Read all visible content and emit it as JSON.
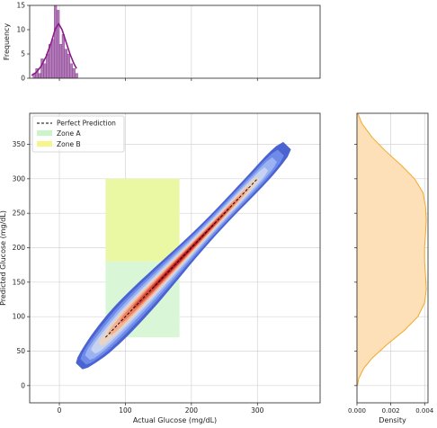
{
  "chart_data": [
    {
      "panel": "top-marginal",
      "type": "histogram",
      "ylabel": "Frequency",
      "xlim": [
        -45,
        395
      ],
      "ylim": [
        0,
        15
      ],
      "xticks": [
        0,
        100,
        200,
        300
      ],
      "yticks": [
        0,
        5,
        10,
        15
      ],
      "yticklabels": [
        "0",
        "5",
        "10",
        "15"
      ],
      "bins": [
        {
          "x0": -40,
          "x1": -36,
          "count": 1
        },
        {
          "x0": -36,
          "x1": -32,
          "count": 2
        },
        {
          "x0": -32,
          "x1": -28,
          "count": 1
        },
        {
          "x0": -28,
          "x1": -24,
          "count": 4
        },
        {
          "x0": -24,
          "x1": -20,
          "count": 3
        },
        {
          "x0": -20,
          "x1": -16,
          "count": 5
        },
        {
          "x0": -16,
          "x1": -12,
          "count": 7
        },
        {
          "x0": -12,
          "x1": -8,
          "count": 8
        },
        {
          "x0": -8,
          "x1": -4,
          "count": 15
        },
        {
          "x0": -4,
          "x1": 0,
          "count": 14
        },
        {
          "x0": 0,
          "x1": 4,
          "count": 7
        },
        {
          "x0": 4,
          "x1": 8,
          "count": 9
        },
        {
          "x0": 8,
          "x1": 12,
          "count": 6
        },
        {
          "x0": 12,
          "x1": 16,
          "count": 5
        },
        {
          "x0": 16,
          "x1": 20,
          "count": 3
        },
        {
          "x0": 20,
          "x1": 24,
          "count": 2
        },
        {
          "x0": 24,
          "x1": 28,
          "count": 1
        }
      ],
      "kde": [
        {
          "x": -42,
          "y": 0.6
        },
        {
          "x": -35,
          "y": 1.2
        },
        {
          "x": -28,
          "y": 2.4
        },
        {
          "x": -20,
          "y": 4.5
        },
        {
          "x": -12,
          "y": 7.5
        },
        {
          "x": -6,
          "y": 10.2
        },
        {
          "x": -1,
          "y": 11.2
        },
        {
          "x": 4,
          "y": 10.0
        },
        {
          "x": 10,
          "y": 7.5
        },
        {
          "x": 16,
          "y": 5.0
        },
        {
          "x": 22,
          "y": 3.0
        },
        {
          "x": 26,
          "y": 2.0
        }
      ],
      "color": "#8b1a8b"
    },
    {
      "panel": "main",
      "type": "density-contour",
      "xlabel": "Actual Glucose (mg/dL)",
      "ylabel": "Predicted Glucose (mg/dL)",
      "xlim": [
        -45,
        395
      ],
      "ylim": [
        -25,
        395
      ],
      "xticks": [
        0,
        100,
        200,
        300
      ],
      "yticks": [
        0,
        50,
        100,
        150,
        200,
        250,
        300,
        350
      ],
      "grid": true,
      "legend_position": "top-left",
      "legend": [
        {
          "label": "Perfect Prediction",
          "kind": "line",
          "color": "#000000"
        },
        {
          "label": "Zone A",
          "kind": "patch",
          "color": "#c9f5c9"
        },
        {
          "label": "Zone B",
          "kind": "patch",
          "color": "#f7f58a"
        }
      ],
      "zones": [
        {
          "name": "Zone A",
          "x": [
            70,
            182
          ],
          "y": [
            70,
            180
          ],
          "color": "#d9f7d6"
        },
        {
          "name": "Zone B",
          "x": [
            70,
            182
          ],
          "y": [
            180,
            300
          ],
          "color": "#eaf8a4"
        }
      ],
      "zone_overlap_color": "#e2f4b0",
      "perfect_line": {
        "x": [
          70,
          300
        ],
        "y": [
          70,
          300
        ]
      },
      "ridge": [
        {
          "x": 30,
          "y": 28
        },
        {
          "x": 60,
          "y": 58
        },
        {
          "x": 100,
          "y": 100
        },
        {
          "x": 150,
          "y": 150
        },
        {
          "x": 200,
          "y": 200
        },
        {
          "x": 250,
          "y": 250
        },
        {
          "x": 300,
          "y": 300
        },
        {
          "x": 345,
          "y": 348
        }
      ],
      "density_levels": [
        {
          "color": "#4a63d1",
          "width_scale": 1.0,
          "t0": 0.0,
          "t1": 1.0
        },
        {
          "color": "#6f8be9",
          "width_scale": 0.82,
          "t0": 0.03,
          "t1": 0.97
        },
        {
          "color": "#9bb3f2",
          "width_scale": 0.66,
          "t0": 0.06,
          "t1": 0.94
        },
        {
          "color": "#c6d3f0",
          "width_scale": 0.52,
          "t0": 0.1,
          "t1": 0.9
        },
        {
          "color": "#ead3c3",
          "width_scale": 0.42,
          "t0": 0.15,
          "t1": 0.86
        },
        {
          "color": "#f4b092",
          "width_scale": 0.34,
          "t0": 0.2,
          "t1": 0.82
        },
        {
          "color": "#ec8161",
          "width_scale": 0.26,
          "t0": 0.26,
          "t1": 0.78
        },
        {
          "color": "#d9493a",
          "width_scale": 0.19,
          "t0": 0.32,
          "t1": 0.74
        },
        {
          "color": "#bb1a26",
          "width_scale": 0.12,
          "t0": 0.4,
          "t1": 0.68
        }
      ],
      "band_half_width": 16
    },
    {
      "panel": "right-marginal",
      "type": "area",
      "xlabel": "Density",
      "xlim": [
        0,
        0.0042
      ],
      "ylim": [
        -25,
        395
      ],
      "xticks": [
        0.0,
        0.002,
        0.004
      ],
      "xticklabels": [
        "0.000",
        "0.002",
        "0.004"
      ],
      "yticks": [
        0,
        50,
        100,
        150,
        200,
        250,
        300,
        350
      ],
      "grid": true,
      "fill_color": "#fde0b8",
      "line_color": "#f2a92a",
      "points": [
        {
          "y": 395,
          "density": 5e-05
        },
        {
          "y": 380,
          "density": 0.0003
        },
        {
          "y": 360,
          "density": 0.0009
        },
        {
          "y": 340,
          "density": 0.0017
        },
        {
          "y": 320,
          "density": 0.0026
        },
        {
          "y": 300,
          "density": 0.0034
        },
        {
          "y": 280,
          "density": 0.0039
        },
        {
          "y": 260,
          "density": 0.00405
        },
        {
          "y": 240,
          "density": 0.0041
        },
        {
          "y": 220,
          "density": 0.00405
        },
        {
          "y": 200,
          "density": 0.004
        },
        {
          "y": 180,
          "density": 0.004
        },
        {
          "y": 160,
          "density": 0.00405
        },
        {
          "y": 140,
          "density": 0.0041
        },
        {
          "y": 120,
          "density": 0.004
        },
        {
          "y": 100,
          "density": 0.0036
        },
        {
          "y": 80,
          "density": 0.0028
        },
        {
          "y": 60,
          "density": 0.0018
        },
        {
          "y": 40,
          "density": 0.0009
        },
        {
          "y": 25,
          "density": 0.0004
        },
        {
          "y": 10,
          "density": 0.0001
        },
        {
          "y": 0,
          "density": 3e-05
        }
      ]
    }
  ]
}
